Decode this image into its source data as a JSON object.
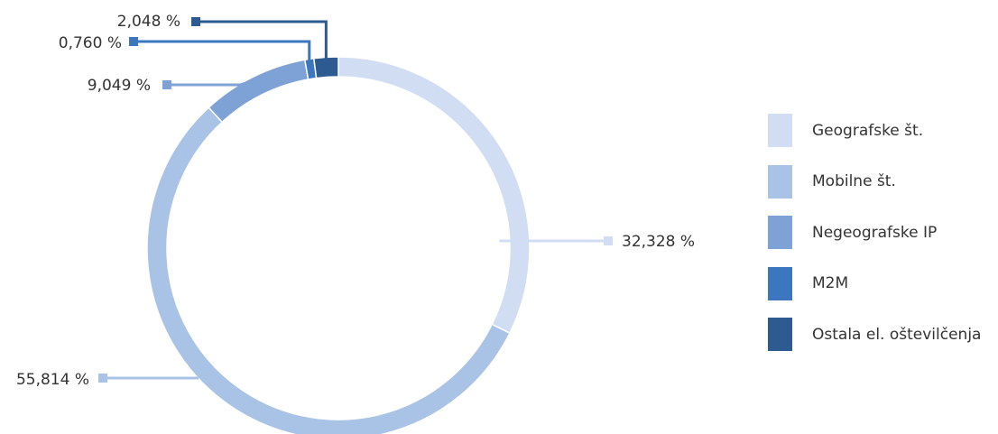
{
  "chart_data": {
    "type": "pie",
    "variant": "donut",
    "categories": [
      "Geografske št.",
      "Mobilne št.",
      "Negeografske IP",
      "M2M",
      "Ostala el. oštevilčenja"
    ],
    "values": [
      32.328,
      55.814,
      9.049,
      0.76,
      2.048
    ],
    "value_labels": [
      "32,328 %",
      "55,814 %",
      "9,049 %",
      "0,760 %",
      "2,048 %"
    ],
    "colors": [
      "#d0ddf2",
      "#a9c3e6",
      "#7ea2d5",
      "#3b76bf",
      "#2d5a91"
    ],
    "legend_position": "right"
  }
}
